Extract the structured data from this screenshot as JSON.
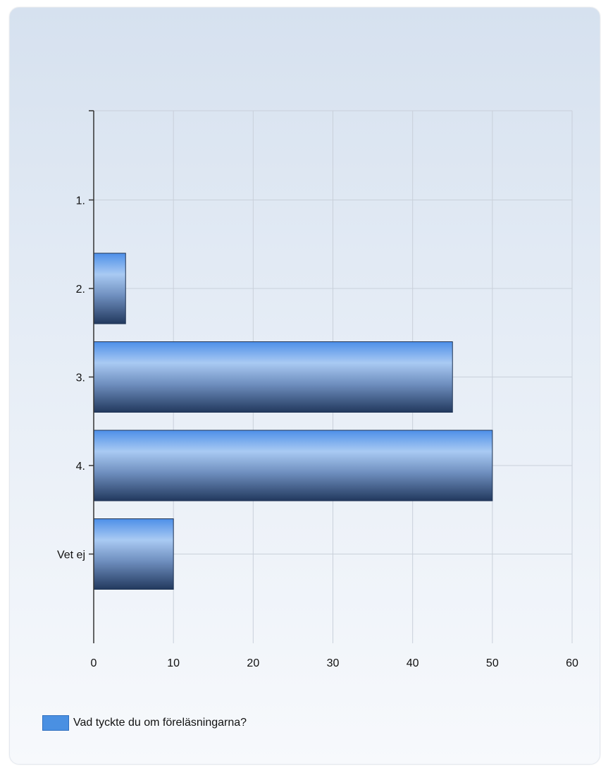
{
  "chart_data": {
    "type": "bar",
    "orientation": "horizontal",
    "categories": [
      "1.",
      "2.",
      "3.",
      "4.",
      "Vet ej"
    ],
    "series": [
      {
        "name": "Vad tyckte du om föreläsningarna?",
        "values": [
          0,
          4,
          45,
          50,
          10
        ]
      }
    ],
    "xlim": [
      0,
      60
    ],
    "x_ticks": [
      "0",
      "10",
      "20",
      "30",
      "40",
      "50",
      "60"
    ],
    "grid": true,
    "legend_position": "bottom-left",
    "bar_color": "#4a90e2",
    "bar_color_dark": "#2b4a77"
  }
}
